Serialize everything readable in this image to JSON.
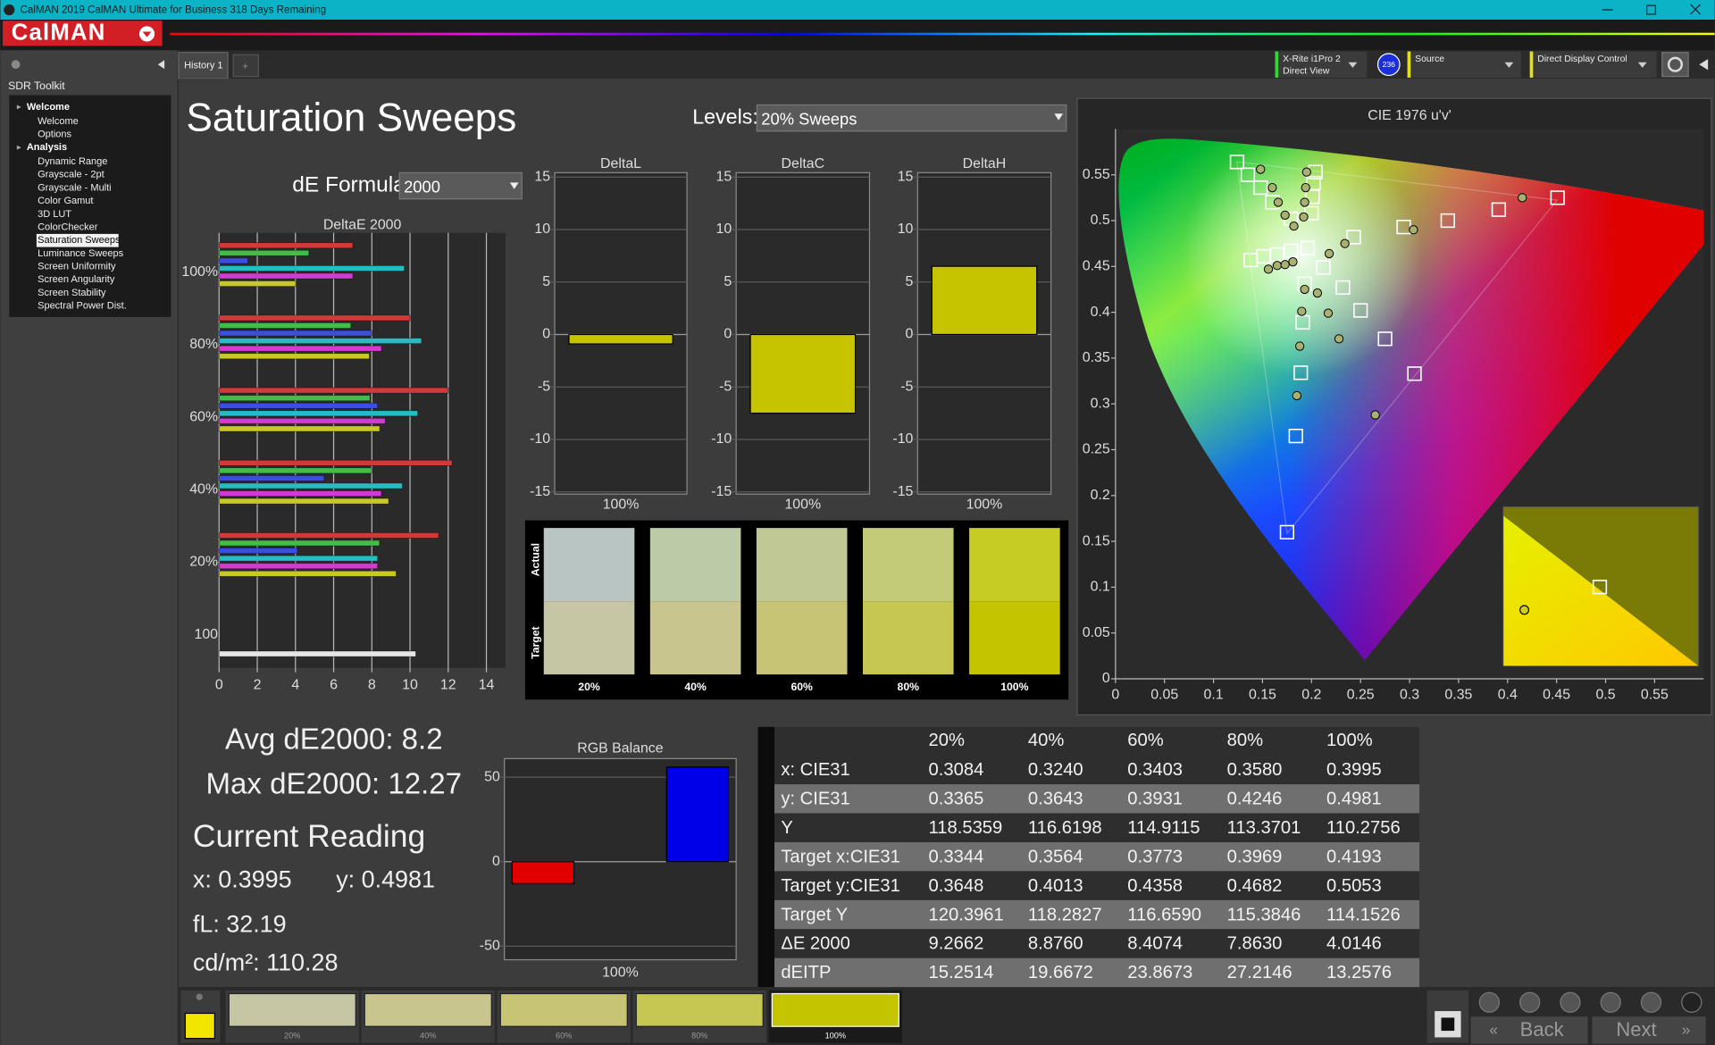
{
  "window": {
    "title": "CalMAN 2019 CalMAN Ultimate for Business 318 Days Remaining",
    "logo": "CalMAN"
  },
  "toolbar": {
    "tab": "History 1",
    "meter": [
      "X-Rite i1Pro 2",
      "Direct View"
    ],
    "meter_id": "236",
    "source": "Source",
    "display_control": "Direct Display Control"
  },
  "sidebar": {
    "title": "SDR Toolkit",
    "groups": [
      {
        "name": "Welcome",
        "items": [
          "Welcome",
          "Options"
        ]
      },
      {
        "name": "Analysis",
        "items": [
          "Dynamic Range",
          "Grayscale - 2pt",
          "Grayscale - Multi",
          "Color Gamut",
          "3D LUT",
          "ColorChecker",
          "Saturation Sweeps",
          "Luminance Sweeps",
          "Screen Uniformity",
          "Screen Angularity",
          "Screen Stability",
          "Spectral Power Dist."
        ],
        "active_item": 6
      }
    ]
  },
  "header": {
    "title": "Saturation Sweeps",
    "levels_label": "Levels:",
    "levels_value": "20% Sweeps",
    "formula_label": "dE Formula:",
    "formula_value": "2000"
  },
  "chart_data": [
    {
      "type": "hbar",
      "title": "DeltaE 2000",
      "categories": [
        "100%",
        "80%",
        "60%",
        "40%",
        "20%",
        "100"
      ],
      "series": [
        {
          "color": "#d23a3a",
          "values": [
            7,
            10,
            12,
            12.2,
            11.5,
            null
          ]
        },
        {
          "color": "#3fbf4a",
          "values": [
            4.7,
            6.9,
            7.9,
            8,
            8.4,
            null
          ]
        },
        {
          "color": "#3a4fe0",
          "values": [
            1.5,
            8,
            8.3,
            5.5,
            4.1,
            null
          ]
        },
        {
          "color": "#27bcc4",
          "values": [
            9.7,
            10.6,
            10.4,
            9.6,
            8.3,
            null
          ]
        },
        {
          "color": "#d23ad2",
          "values": [
            7,
            8.5,
            8.7,
            8.5,
            8.3,
            null
          ]
        },
        {
          "color": "#c8c828",
          "values": [
            4.0146,
            7.863,
            8.4074,
            8.876,
            9.2662,
            null
          ]
        },
        {
          "color": "#e6e6e6",
          "values": [
            null,
            null,
            null,
            null,
            null,
            10.3
          ]
        }
      ],
      "xlim": [
        0,
        15
      ],
      "xticks": [
        0,
        2,
        4,
        6,
        8,
        10,
        12,
        14
      ],
      "grid": true
    },
    {
      "type": "bar",
      "title": "DeltaL",
      "categories": [
        "100%"
      ],
      "values": [
        -0.9
      ],
      "color": "#c6c400",
      "ylim": [
        -15,
        15
      ],
      "yticks": [
        -15,
        -10,
        -5,
        0,
        5,
        10,
        15
      ],
      "grid": true
    },
    {
      "type": "bar",
      "title": "DeltaC",
      "categories": [
        "100%"
      ],
      "values": [
        -7.5
      ],
      "color": "#c6c400",
      "ylim": [
        -15,
        15
      ],
      "yticks": [
        -15,
        -10,
        -5,
        0,
        5,
        10,
        15
      ],
      "grid": true
    },
    {
      "type": "bar",
      "title": "DeltaH",
      "categories": [
        "100%"
      ],
      "values": [
        6.5
      ],
      "color": "#c6c400",
      "ylim": [
        -15,
        15
      ],
      "yticks": [
        -15,
        -10,
        -5,
        0,
        5,
        10,
        15
      ],
      "grid": true
    },
    {
      "type": "bar",
      "title": "RGB Balance",
      "categories": [
        "100%"
      ],
      "series": [
        {
          "color": "#e00000",
          "values": [
            -13
          ]
        },
        {
          "color": "#00c000",
          "values": [
            0
          ]
        },
        {
          "color": "#0000e8",
          "values": [
            56
          ]
        }
      ],
      "ylim": [
        -58,
        61
      ],
      "yticks": [
        -50,
        0,
        50
      ],
      "grid": true
    },
    {
      "type": "scatter",
      "title": "CIE 1976 u'v'",
      "series": [
        {
          "marker": "square",
          "color": "#ffffff",
          "x": [
            0.451,
            0.391,
            0.339,
            0.294,
            0.243,
            0.124,
            0.135,
            0.148,
            0.16,
            0.179,
            0.175,
            0.184,
            0.189,
            0.191,
            0.193,
            0.138,
            0.151,
            0.165,
            0.179,
            0.305,
            0.275,
            0.25,
            0.232,
            0.212,
            0.204,
            0.202,
            0.201,
            0.2,
            0.196
          ],
          "y": [
            0.525,
            0.512,
            0.5,
            0.493,
            0.482,
            0.564,
            0.55,
            0.536,
            0.52,
            0.502,
            0.16,
            0.265,
            0.334,
            0.389,
            0.431,
            0.457,
            0.461,
            0.463,
            0.467,
            0.333,
            0.371,
            0.402,
            0.427,
            0.449,
            0.553,
            0.541,
            0.526,
            0.508,
            0.47
          ]
        },
        {
          "marker": "circle",
          "color": "#a9b070",
          "x": [
            0.148,
            0.16,
            0.166,
            0.173,
            0.182,
            0.195,
            0.194,
            0.193,
            0.192,
            0.156,
            0.165,
            0.173,
            0.181,
            0.185,
            0.188,
            0.19,
            0.193,
            0.265,
            0.228,
            0.217,
            0.206,
            0.415,
            0.304,
            0.234,
            0.218
          ],
          "y": [
            0.556,
            0.536,
            0.52,
            0.506,
            0.494,
            0.553,
            0.536,
            0.52,
            0.504,
            0.447,
            0.451,
            0.452,
            0.455,
            0.309,
            0.363,
            0.401,
            0.425,
            0.288,
            0.371,
            0.399,
            0.421,
            0.525,
            0.49,
            0.475,
            0.464
          ]
        }
      ],
      "xlim": [
        0,
        0.6
      ],
      "ylim": [
        0,
        0.6
      ],
      "xticks": [
        0,
        0.05,
        0.1,
        0.15,
        0.2,
        0.25,
        0.3,
        0.35,
        0.4,
        0.45,
        0.5,
        0.55
      ],
      "yticks": [
        0,
        0.05,
        0.1,
        0.15,
        0.2,
        0.25,
        0.3,
        0.35,
        0.4,
        0.45,
        0.5,
        0.55
      ]
    }
  ],
  "swatches": {
    "actual_label": "Actual",
    "target_label": "Target",
    "items": [
      {
        "label": "20%",
        "actual": "#b8c5c2",
        "target": "#c6c5a4"
      },
      {
        "label": "40%",
        "actual": "#bccaa8",
        "target": "#c8c68e"
      },
      {
        "label": "60%",
        "actual": "#c0c995",
        "target": "#c7c574"
      },
      {
        "label": "80%",
        "actual": "#c4cb78",
        "target": "#c6c652"
      },
      {
        "label": "100%",
        "actual": "#c6cc24",
        "target": "#c4c400"
      }
    ]
  },
  "summary": {
    "avg": "Avg dE2000: 8.2",
    "max": "Max dE2000: 12.27",
    "reading_title": "Current Reading",
    "x": "x: 0.3995",
    "y": "y: 0.4981",
    "fl": "fL: 32.19",
    "luminance": "cd/m²: 110.28"
  },
  "table": {
    "header": [
      "20%",
      "40%",
      "60%",
      "80%",
      "100%"
    ],
    "rows": [
      [
        "x: CIE31",
        "0.3084",
        "0.3240",
        "0.3403",
        "0.3580",
        "0.3995"
      ],
      [
        "y: CIE31",
        "0.3365",
        "0.3643",
        "0.3931",
        "0.4246",
        "0.4981"
      ],
      [
        "Y",
        "118.5359",
        "116.6198",
        "114.9115",
        "113.3701",
        "110.2756"
      ],
      [
        "Target x:CIE31",
        "0.3344",
        "0.3564",
        "0.3773",
        "0.3969",
        "0.4193"
      ],
      [
        "Target y:CIE31",
        "0.3648",
        "0.4013",
        "0.4358",
        "0.4682",
        "0.5053"
      ],
      [
        "Target Y",
        "120.3961",
        "118.2827",
        "116.6590",
        "115.3846",
        "114.1526"
      ],
      [
        "ΔE 2000",
        "9.2662",
        "8.8760",
        "8.4074",
        "7.8630",
        "4.0146"
      ],
      [
        "dEITP",
        "15.2514",
        "19.6672",
        "23.8673",
        "27.2146",
        "13.2576"
      ]
    ]
  },
  "footer": {
    "current_color": "#f2e600",
    "swatches": [
      {
        "label": "20%",
        "color": "#c6c5a4"
      },
      {
        "label": "40%",
        "color": "#c8c68e"
      },
      {
        "label": "60%",
        "color": "#c7c574"
      },
      {
        "label": "80%",
        "color": "#c6c652"
      },
      {
        "label": "100%",
        "color": "#c4c400"
      }
    ],
    "active_swatch": 4,
    "back": "Back",
    "next": "Next"
  }
}
